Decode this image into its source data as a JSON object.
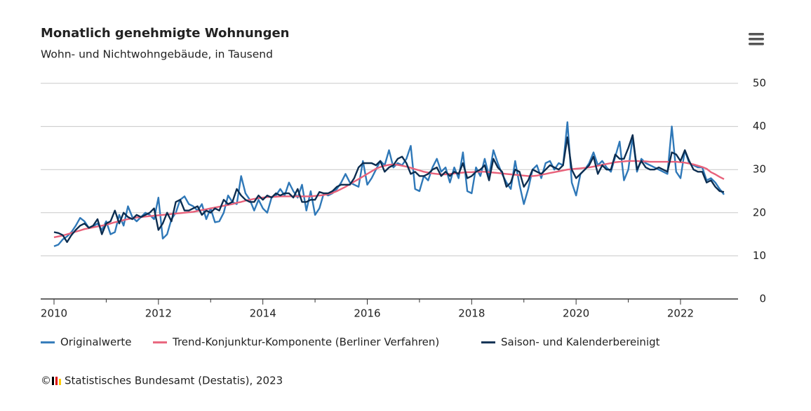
{
  "chart_data": {
    "type": "line",
    "title": "Monatlich genehmigte Wohnungen",
    "subtitle": "Wohn- und Nichtwohngebäude, in Tausend",
    "categories": [
      "2010",
      null,
      null,
      null,
      null,
      null,
      null,
      null,
      null,
      null,
      null,
      null,
      null,
      null,
      null,
      null,
      null,
      null,
      null,
      null,
      null,
      null,
      null,
      null,
      "2012",
      null,
      null,
      null,
      null,
      null,
      null,
      null,
      null,
      null,
      null,
      null,
      null,
      null,
      null,
      null,
      null,
      null,
      null,
      null,
      null,
      null,
      null,
      null,
      "2014",
      null,
      null,
      null,
      null,
      null,
      null,
      null,
      null,
      null,
      null,
      null,
      null,
      null,
      null,
      null,
      null,
      null,
      null,
      null,
      null,
      null,
      null,
      null,
      "2016",
      null,
      null,
      null,
      null,
      null,
      null,
      null,
      null,
      null,
      null,
      null,
      null,
      null,
      null,
      null,
      null,
      null,
      null,
      null,
      null,
      null,
      null,
      null,
      "2018",
      null,
      null,
      null,
      null,
      null,
      null,
      null,
      null,
      null,
      null,
      null,
      null,
      null,
      null,
      null,
      null,
      null,
      null,
      null,
      null,
      null,
      null,
      null,
      "2020",
      null,
      null,
      null,
      null,
      null,
      null,
      null,
      null,
      null,
      null,
      null,
      null,
      null,
      null,
      null,
      null,
      null,
      null,
      null,
      null,
      null,
      null,
      null,
      "2022",
      null,
      null,
      null,
      null,
      null,
      null,
      null,
      null,
      null,
      null
    ],
    "series": [
      {
        "name": "Originalwerte",
        "color": "#2f78b8",
        "values": [
          12.2,
          12.6,
          13.8,
          14.5,
          15.5,
          17.0,
          18.8,
          18.0,
          16.5,
          16.8,
          17.5,
          16.0,
          18.0,
          15.0,
          15.5,
          19.5,
          17.0,
          21.5,
          19.0,
          18.0,
          19.0,
          20.0,
          19.5,
          18.5,
          23.5,
          14.0,
          15.0,
          18.5,
          20.0,
          23.0,
          23.8,
          22.0,
          21.5,
          20.5,
          22.0,
          18.5,
          21.0,
          17.8,
          18.0,
          20.0,
          24.0,
          22.5,
          22.0,
          28.5,
          24.5,
          23.0,
          20.5,
          23.0,
          21.0,
          20.0,
          23.5,
          24.0,
          25.5,
          24.0,
          27.0,
          25.0,
          23.5,
          26.5,
          20.5,
          25.0,
          19.5,
          21.0,
          24.5,
          24.0,
          24.5,
          25.5,
          27.0,
          29.0,
          27.0,
          26.5,
          26.0,
          32.0,
          26.5,
          28.0,
          30.0,
          32.0,
          31.0,
          34.5,
          30.5,
          31.5,
          31.0,
          32.5,
          35.5,
          25.5,
          25.0,
          28.5,
          27.5,
          30.5,
          32.5,
          29.5,
          30.5,
          27.0,
          30.5,
          28.0,
          34.0,
          25.0,
          24.5,
          30.5,
          28.5,
          32.5,
          28.5,
          34.5,
          31.5,
          29.0,
          27.0,
          25.5,
          32.0,
          26.5,
          22.0,
          25.5,
          30.0,
          31.0,
          28.0,
          31.5,
          32.0,
          30.0,
          31.5,
          31.0,
          41.0,
          27.0,
          24.0,
          29.0,
          30.0,
          31.5,
          34.0,
          31.0,
          32.0,
          30.5,
          29.5,
          33.0,
          36.5,
          27.5,
          30.0,
          37.5,
          29.5,
          32.5,
          31.5,
          31.0,
          30.5,
          30.0,
          29.5,
          29.0,
          40.0,
          29.5,
          28.0,
          34.5,
          31.5,
          31.0,
          30.5,
          30.5,
          27.5,
          28.0,
          27.0,
          25.5,
          24.2
        ]
      },
      {
        "name": "Trend-Konjunktur-Komponente (Berliner Verfahren)",
        "color": "#e8617a",
        "values": [
          14.3,
          14.5,
          14.7,
          15.0,
          15.3,
          15.6,
          15.9,
          16.2,
          16.4,
          16.6,
          16.8,
          17.0,
          17.2,
          17.5,
          17.8,
          18.0,
          18.3,
          18.5,
          18.7,
          18.9,
          19.0,
          19.1,
          19.2,
          19.3,
          19.4,
          19.5,
          19.6,
          19.7,
          19.8,
          19.9,
          20.0,
          20.1,
          20.2,
          20.4,
          20.6,
          20.8,
          21.0,
          21.2,
          21.4,
          21.6,
          21.8,
          22.0,
          22.3,
          22.5,
          22.8,
          23.0,
          23.2,
          23.4,
          23.5,
          23.6,
          23.7,
          23.7,
          23.8,
          23.8,
          23.8,
          23.8,
          23.8,
          23.8,
          23.8,
          23.8,
          23.9,
          24.0,
          24.1,
          24.3,
          24.6,
          25.0,
          25.5,
          26.0,
          26.6,
          27.2,
          27.8,
          28.4,
          29.0,
          29.6,
          30.2,
          30.6,
          30.9,
          31.1,
          31.2,
          31.1,
          30.9,
          30.7,
          30.4,
          30.1,
          29.8,
          29.5,
          29.3,
          29.1,
          29.0,
          28.9,
          28.9,
          29.0,
          29.1,
          29.2,
          29.3,
          29.4,
          29.4,
          29.5,
          29.5,
          29.5,
          29.4,
          29.3,
          29.2,
          29.1,
          29.0,
          28.9,
          28.8,
          28.7,
          28.6,
          28.5,
          28.5,
          28.6,
          28.8,
          29.0,
          29.2,
          29.4,
          29.6,
          29.8,
          30.0,
          30.1,
          30.2,
          30.3,
          30.4,
          30.5,
          30.7,
          30.9,
          31.1,
          31.3,
          31.5,
          31.7,
          31.8,
          31.9,
          32.0,
          32.0,
          32.0,
          31.9,
          31.9,
          31.8,
          31.8,
          31.8,
          31.8,
          31.8,
          31.8,
          31.8,
          31.7,
          31.6,
          31.4,
          31.2,
          30.9,
          30.6,
          30.2,
          29.4,
          28.9,
          28.3,
          27.8
        ]
      },
      {
        "name": "Saison- und Kalenderbereinigt",
        "color": "#0c2d50",
        "values": [
          15.5,
          15.3,
          14.8,
          13.2,
          14.8,
          16.0,
          17.0,
          17.5,
          16.5,
          17.0,
          18.5,
          15.0,
          17.5,
          18.0,
          20.5,
          17.5,
          20.0,
          19.0,
          18.5,
          19.5,
          19.0,
          19.5,
          20.0,
          21.0,
          16.0,
          17.5,
          20.0,
          18.0,
          22.5,
          23.0,
          20.5,
          20.5,
          21.0,
          21.5,
          19.5,
          20.5,
          20.0,
          21.0,
          20.5,
          23.0,
          22.0,
          22.5,
          25.5,
          24.0,
          23.0,
          22.5,
          22.5,
          24.0,
          23.0,
          24.0,
          23.5,
          24.5,
          24.0,
          24.5,
          24.5,
          23.5,
          25.5,
          22.5,
          22.5,
          23.0,
          23.0,
          24.8,
          24.5,
          24.5,
          25.0,
          26.0,
          26.5,
          26.5,
          26.5,
          28.0,
          30.5,
          31.5,
          31.5,
          31.5,
          31.0,
          32.0,
          29.5,
          30.5,
          31.0,
          32.5,
          33.0,
          31.5,
          29.0,
          29.5,
          28.5,
          28.5,
          29.0,
          30.0,
          30.5,
          28.5,
          29.5,
          28.5,
          29.5,
          29.0,
          31.5,
          28.0,
          28.5,
          29.5,
          30.0,
          31.0,
          27.5,
          32.5,
          30.5,
          29.5,
          26.0,
          27.0,
          30.0,
          29.5,
          26.0,
          27.5,
          30.0,
          29.5,
          29.0,
          30.0,
          31.0,
          30.5,
          30.0,
          31.0,
          37.5,
          30.0,
          28.0,
          29.0,
          30.0,
          31.0,
          33.0,
          29.0,
          31.0,
          30.0,
          30.0,
          33.5,
          32.5,
          32.5,
          35.0,
          38.0,
          30.0,
          32.0,
          30.5,
          30.0,
          30.0,
          30.5,
          30.0,
          29.5,
          34.0,
          33.5,
          32.0,
          34.5,
          32.0,
          30.0,
          29.5,
          29.5,
          27.0,
          27.5,
          26.0,
          25.0,
          24.8
        ]
      }
    ],
    "ylim": [
      0,
      50
    ],
    "yticks": [
      0,
      10,
      20,
      30,
      40,
      50
    ],
    "grid": true,
    "legend": "bottom",
    "footer": {
      "copyright": "©",
      "source": "Statistisches Bundesamt (Destatis), 2023"
    }
  }
}
